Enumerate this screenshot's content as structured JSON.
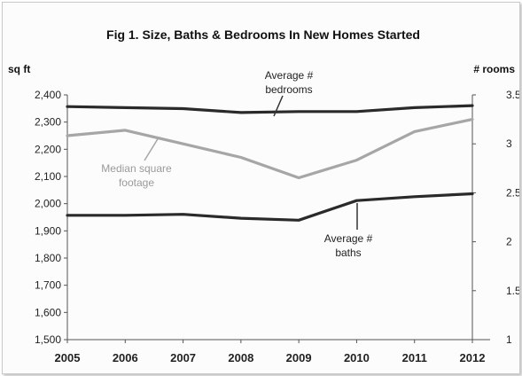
{
  "chart_data": {
    "type": "line",
    "title": "Fig 1. Size, Baths & Bedrooms In New Homes Started",
    "y_left_label": "sq ft",
    "y_right_label": "# rooms",
    "x": [
      "2005",
      "2006",
      "2007",
      "2008",
      "2009",
      "2010",
      "2011",
      "2012"
    ],
    "y_left_ticks": [
      "1,500",
      "1,600",
      "1,700",
      "1,800",
      "1,900",
      "2,000",
      "2,100",
      "2,200",
      "2,300",
      "2,400"
    ],
    "y_left_range": [
      1500,
      2400
    ],
    "y_right_ticks": [
      "1",
      "1.5",
      "2",
      "2.5",
      "3",
      "3.5"
    ],
    "y_right_range": [
      1,
      3.5
    ],
    "grid": false,
    "series": [
      {
        "name": "Median square footage",
        "label_lines": [
          "Median square",
          "footage"
        ],
        "axis": "left",
        "color": "#a6a6a6",
        "values": [
          2250,
          2270,
          2220,
          2170,
          2095,
          2160,
          2265,
          2310
        ]
      },
      {
        "name": "Average # bedrooms",
        "label_lines": [
          "Average #",
          "bedrooms"
        ],
        "axis": "right",
        "color": "#2a2a2a",
        "values": [
          3.38,
          3.37,
          3.36,
          3.32,
          3.33,
          3.33,
          3.37,
          3.39
        ]
      },
      {
        "name": "Average # baths",
        "label_lines": [
          "Average #",
          "baths"
        ],
        "axis": "right",
        "color": "#2a2a2a",
        "values": [
          2.27,
          2.27,
          2.28,
          2.24,
          2.22,
          2.42,
          2.46,
          2.49
        ]
      }
    ]
  }
}
